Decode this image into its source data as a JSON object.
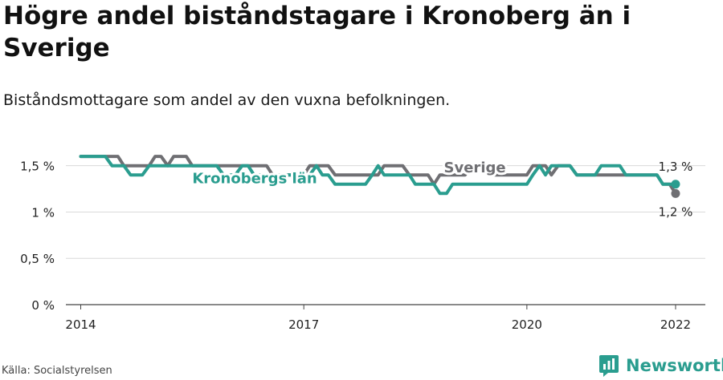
{
  "title": "Högre andel biståndstagare i Kronoberg än i Sverige",
  "subtitle": "Biståndsmottagare som andel av den vuxna befolkningen.",
  "source": "Källa: Socialstyrelsen",
  "brand": {
    "name": "Newsworthy",
    "icon": "newsworthy-logo-icon",
    "color": "#2a9d8f"
  },
  "chart_data": {
    "type": "line",
    "title": "Högre andel biståndstagare i Kronoberg än i Sverige",
    "subtitle": "Biståndsmottagare som andel av den vuxna befolkningen.",
    "xlabel": "",
    "ylabel": "",
    "xlim": [
      2013.8,
      2022.4
    ],
    "ylim": [
      0,
      1.8
    ],
    "yticks": [
      0,
      0.5,
      1,
      1.5
    ],
    "ytick_labels": [
      "0 %",
      "0,5 %",
      "1 %",
      "1,5 %"
    ],
    "xticks": [
      2014,
      2017,
      2020,
      2022
    ],
    "xtick_labels": [
      "2014",
      "2017",
      "2020",
      "2022"
    ],
    "grid": "horizontal",
    "legend": "inline labels",
    "series": [
      {
        "name": "Kronobergs län",
        "color": "#2a9d8f",
        "end_label": "1,3 %",
        "points": [
          [
            2014.0,
            1.6
          ],
          [
            2014.08,
            1.6
          ],
          [
            2014.17,
            1.6
          ],
          [
            2014.25,
            1.6
          ],
          [
            2014.33,
            1.6
          ],
          [
            2014.42,
            1.5
          ],
          [
            2014.5,
            1.5
          ],
          [
            2014.58,
            1.5
          ],
          [
            2014.67,
            1.4
          ],
          [
            2014.75,
            1.4
          ],
          [
            2014.83,
            1.4
          ],
          [
            2014.92,
            1.5
          ],
          [
            2015.0,
            1.5
          ],
          [
            2015.08,
            1.5
          ],
          [
            2015.17,
            1.5
          ],
          [
            2015.25,
            1.5
          ],
          [
            2015.33,
            1.5
          ],
          [
            2015.42,
            1.5
          ],
          [
            2015.5,
            1.5
          ],
          [
            2015.58,
            1.5
          ],
          [
            2015.67,
            1.5
          ],
          [
            2015.75,
            1.5
          ],
          [
            2015.83,
            1.5
          ],
          [
            2015.92,
            1.4
          ],
          [
            2016.0,
            1.4
          ],
          [
            2016.08,
            1.4
          ],
          [
            2016.17,
            1.5
          ],
          [
            2016.25,
            1.5
          ],
          [
            2016.33,
            1.4
          ],
          [
            2016.42,
            1.4
          ],
          [
            2016.5,
            1.4
          ],
          [
            2016.58,
            1.4
          ],
          [
            2016.67,
            1.4
          ],
          [
            2016.75,
            1.4
          ],
          [
            2016.83,
            1.4
          ],
          [
            2016.92,
            1.4
          ],
          [
            2017.0,
            1.4
          ],
          [
            2017.08,
            1.4
          ],
          [
            2017.17,
            1.5
          ],
          [
            2017.25,
            1.4
          ],
          [
            2017.33,
            1.4
          ],
          [
            2017.42,
            1.3
          ],
          [
            2017.5,
            1.3
          ],
          [
            2017.58,
            1.3
          ],
          [
            2017.67,
            1.3
          ],
          [
            2017.75,
            1.3
          ],
          [
            2017.83,
            1.3
          ],
          [
            2017.92,
            1.4
          ],
          [
            2018.0,
            1.5
          ],
          [
            2018.08,
            1.4
          ],
          [
            2018.17,
            1.4
          ],
          [
            2018.25,
            1.4
          ],
          [
            2018.33,
            1.4
          ],
          [
            2018.42,
            1.4
          ],
          [
            2018.5,
            1.3
          ],
          [
            2018.58,
            1.3
          ],
          [
            2018.67,
            1.3
          ],
          [
            2018.75,
            1.3
          ],
          [
            2018.83,
            1.2
          ],
          [
            2018.92,
            1.2
          ],
          [
            2019.0,
            1.3
          ],
          [
            2019.08,
            1.3
          ],
          [
            2019.17,
            1.3
          ],
          [
            2019.25,
            1.3
          ],
          [
            2019.33,
            1.3
          ],
          [
            2019.42,
            1.3
          ],
          [
            2019.5,
            1.3
          ],
          [
            2019.58,
            1.3
          ],
          [
            2019.67,
            1.3
          ],
          [
            2019.75,
            1.3
          ],
          [
            2019.83,
            1.3
          ],
          [
            2019.92,
            1.3
          ],
          [
            2020.0,
            1.3
          ],
          [
            2020.08,
            1.4
          ],
          [
            2020.17,
            1.5
          ],
          [
            2020.25,
            1.4
          ],
          [
            2020.33,
            1.5
          ],
          [
            2020.42,
            1.5
          ],
          [
            2020.5,
            1.5
          ],
          [
            2020.58,
            1.5
          ],
          [
            2020.67,
            1.4
          ],
          [
            2020.75,
            1.4
          ],
          [
            2020.83,
            1.4
          ],
          [
            2020.92,
            1.4
          ],
          [
            2021.0,
            1.5
          ],
          [
            2021.08,
            1.5
          ],
          [
            2021.17,
            1.5
          ],
          [
            2021.25,
            1.5
          ],
          [
            2021.33,
            1.4
          ],
          [
            2021.42,
            1.4
          ],
          [
            2021.5,
            1.4
          ],
          [
            2021.58,
            1.4
          ],
          [
            2021.67,
            1.4
          ],
          [
            2021.75,
            1.4
          ],
          [
            2021.83,
            1.3
          ],
          [
            2021.92,
            1.3
          ],
          [
            2022.0,
            1.3
          ]
        ]
      },
      {
        "name": "Sverige",
        "color": "#6f6f73",
        "end_label": "1,2 %",
        "points": [
          [
            2014.0,
            1.6
          ],
          [
            2014.08,
            1.6
          ],
          [
            2014.17,
            1.6
          ],
          [
            2014.25,
            1.6
          ],
          [
            2014.33,
            1.6
          ],
          [
            2014.42,
            1.6
          ],
          [
            2014.5,
            1.6
          ],
          [
            2014.58,
            1.5
          ],
          [
            2014.67,
            1.5
          ],
          [
            2014.75,
            1.5
          ],
          [
            2014.83,
            1.5
          ],
          [
            2014.92,
            1.5
          ],
          [
            2015.0,
            1.6
          ],
          [
            2015.08,
            1.6
          ],
          [
            2015.17,
            1.5
          ],
          [
            2015.25,
            1.6
          ],
          [
            2015.33,
            1.6
          ],
          [
            2015.42,
            1.6
          ],
          [
            2015.5,
            1.5
          ],
          [
            2015.58,
            1.5
          ],
          [
            2015.67,
            1.5
          ],
          [
            2015.75,
            1.5
          ],
          [
            2015.83,
            1.5
          ],
          [
            2015.92,
            1.5
          ],
          [
            2016.0,
            1.5
          ],
          [
            2016.08,
            1.5
          ],
          [
            2016.17,
            1.5
          ],
          [
            2016.25,
            1.5
          ],
          [
            2016.33,
            1.5
          ],
          [
            2016.42,
            1.5
          ],
          [
            2016.5,
            1.5
          ],
          [
            2016.58,
            1.4
          ],
          [
            2016.67,
            1.4
          ],
          [
            2016.75,
            1.4
          ],
          [
            2016.83,
            1.4
          ],
          [
            2016.92,
            1.4
          ],
          [
            2017.0,
            1.4
          ],
          [
            2017.08,
            1.5
          ],
          [
            2017.17,
            1.5
          ],
          [
            2017.25,
            1.5
          ],
          [
            2017.33,
            1.5
          ],
          [
            2017.42,
            1.4
          ],
          [
            2017.5,
            1.4
          ],
          [
            2017.58,
            1.4
          ],
          [
            2017.67,
            1.4
          ],
          [
            2017.75,
            1.4
          ],
          [
            2017.83,
            1.4
          ],
          [
            2017.92,
            1.4
          ],
          [
            2018.0,
            1.4
          ],
          [
            2018.08,
            1.5
          ],
          [
            2018.17,
            1.5
          ],
          [
            2018.25,
            1.5
          ],
          [
            2018.33,
            1.5
          ],
          [
            2018.42,
            1.4
          ],
          [
            2018.5,
            1.4
          ],
          [
            2018.58,
            1.4
          ],
          [
            2018.67,
            1.4
          ],
          [
            2018.75,
            1.3
          ],
          [
            2018.83,
            1.4
          ],
          [
            2018.92,
            1.4
          ],
          [
            2019.0,
            1.4
          ],
          [
            2019.08,
            1.4
          ],
          [
            2019.17,
            1.4
          ],
          [
            2019.25,
            1.5
          ],
          [
            2019.33,
            1.5
          ],
          [
            2019.42,
            1.5
          ],
          [
            2019.5,
            1.4
          ],
          [
            2019.58,
            1.4
          ],
          [
            2019.67,
            1.4
          ],
          [
            2019.75,
            1.4
          ],
          [
            2019.83,
            1.4
          ],
          [
            2019.92,
            1.4
          ],
          [
            2020.0,
            1.4
          ],
          [
            2020.08,
            1.5
          ],
          [
            2020.17,
            1.5
          ],
          [
            2020.25,
            1.5
          ],
          [
            2020.33,
            1.4
          ],
          [
            2020.42,
            1.5
          ],
          [
            2020.5,
            1.5
          ],
          [
            2020.58,
            1.5
          ],
          [
            2020.67,
            1.4
          ],
          [
            2020.75,
            1.4
          ],
          [
            2020.83,
            1.4
          ],
          [
            2020.92,
            1.4
          ],
          [
            2021.0,
            1.4
          ],
          [
            2021.08,
            1.4
          ],
          [
            2021.17,
            1.4
          ],
          [
            2021.25,
            1.4
          ],
          [
            2021.33,
            1.4
          ],
          [
            2021.42,
            1.4
          ],
          [
            2021.5,
            1.4
          ],
          [
            2021.58,
            1.4
          ],
          [
            2021.67,
            1.4
          ],
          [
            2021.75,
            1.4
          ],
          [
            2021.83,
            1.3
          ],
          [
            2021.92,
            1.3
          ],
          [
            2022.0,
            1.2
          ]
        ]
      }
    ]
  }
}
